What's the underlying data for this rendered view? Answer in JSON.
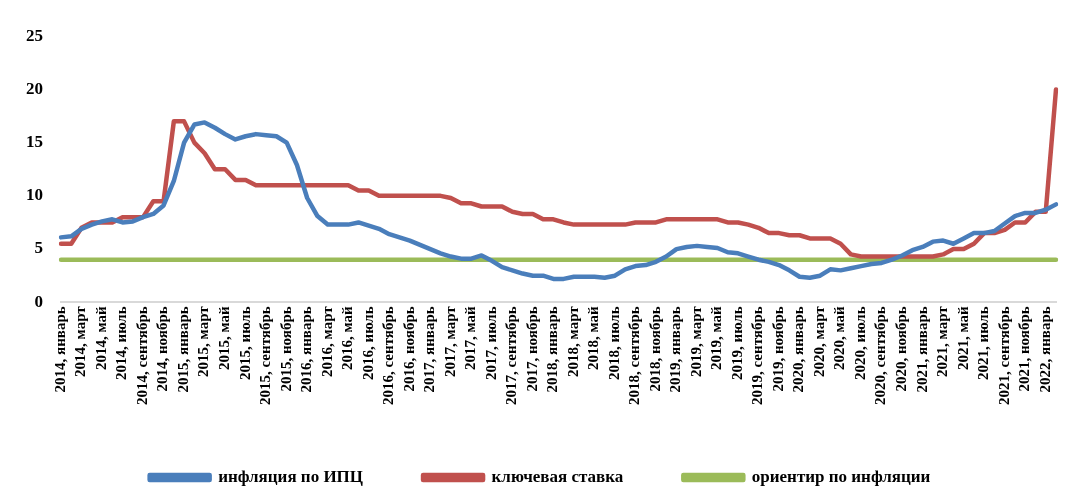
{
  "chart_data": {
    "type": "line",
    "categories": [
      "2014, январь",
      null,
      "2014, март",
      null,
      "2014, май",
      null,
      "2014, июль",
      null,
      "2014, сентябрь",
      null,
      "2014, ноябрь",
      null,
      "2015, январь",
      null,
      "2015, март",
      null,
      "2015, май",
      null,
      "2015, июль",
      null,
      "2015, сентябрь",
      null,
      "2015, ноябрь",
      null,
      "2016, январь",
      null,
      "2016, март",
      null,
      "2016, май",
      null,
      "2016, июль",
      null,
      "2016, сентябрь",
      null,
      "2016, ноябрь",
      null,
      "2017, январь",
      null,
      "2017, март",
      null,
      "2017, май",
      null,
      "2017, июль",
      null,
      "2017, сентябрь",
      null,
      "2017, ноябрь",
      null,
      "2018, январь",
      null,
      "2018, март",
      null,
      "2018, май",
      null,
      "2018, июль",
      null,
      "2018, сентябрь",
      null,
      "2018, ноябрь",
      null,
      "2019, январь",
      null,
      "2019, март",
      null,
      "2019, май",
      null,
      "2019, июль",
      null,
      "2019, сентябрь",
      null,
      "2019, ноябрь",
      null,
      "2020, январь",
      null,
      "2020, март",
      null,
      "2020, май",
      null,
      "2020, июль",
      null,
      "2020, сентябрь",
      null,
      "2020, ноябрь",
      null,
      "2021, январь",
      null,
      "2021, март",
      null,
      "2021, май",
      null,
      "2021, июль",
      null,
      "2021, сентябрь",
      null,
      "2021, ноябрь",
      null,
      "2022, январь",
      null
    ],
    "series": [
      {
        "name": "инфляция по ИПЦ",
        "color": "#4a7ebb",
        "values": [
          6.1,
          6.2,
          6.9,
          7.3,
          7.6,
          7.8,
          7.5,
          7.6,
          8.0,
          8.3,
          9.1,
          11.4,
          15.0,
          16.7,
          16.9,
          16.4,
          15.8,
          15.3,
          15.6,
          15.8,
          15.7,
          15.6,
          15.0,
          12.9,
          9.8,
          8.1,
          7.3,
          7.3,
          7.3,
          7.5,
          7.2,
          6.9,
          6.4,
          6.1,
          5.8,
          5.4,
          5.0,
          4.6,
          4.3,
          4.1,
          4.1,
          4.4,
          3.9,
          3.3,
          3.0,
          2.7,
          2.5,
          2.5,
          2.2,
          2.2,
          2.4,
          2.4,
          2.4,
          2.3,
          2.5,
          3.1,
          3.4,
          3.5,
          3.8,
          4.3,
          5.0,
          5.2,
          5.3,
          5.2,
          5.1,
          4.7,
          4.6,
          4.3,
          4.0,
          3.8,
          3.5,
          3.0,
          2.4,
          2.3,
          2.5,
          3.1,
          3.0,
          3.2,
          3.4,
          3.6,
          3.7,
          4.0,
          4.4,
          4.9,
          5.2,
          5.7,
          5.8,
          5.5,
          6.0,
          6.5,
          6.5,
          6.7,
          7.4,
          8.1,
          8.4,
          8.4,
          8.7,
          9.2
        ]
      },
      {
        "name": "ключевая ставка",
        "color": "#c0504d",
        "values": [
          5.5,
          5.5,
          7.0,
          7.5,
          7.5,
          7.5,
          8.0,
          8.0,
          8.0,
          9.5,
          9.5,
          17,
          17,
          15,
          14,
          12.5,
          12.5,
          11.5,
          11.5,
          11,
          11,
          11,
          11,
          11,
          11,
          11,
          11,
          11,
          11,
          10.5,
          10.5,
          10,
          10,
          10,
          10,
          10,
          10,
          10,
          9.8,
          9.3,
          9.3,
          9,
          9,
          9,
          8.5,
          8.3,
          8.3,
          7.8,
          7.8,
          7.5,
          7.3,
          7.3,
          7.3,
          7.3,
          7.3,
          7.3,
          7.5,
          7.5,
          7.5,
          7.8,
          7.8,
          7.8,
          7.8,
          7.8,
          7.8,
          7.5,
          7.5,
          7.3,
          7,
          6.5,
          6.5,
          6.3,
          6.3,
          6,
          6,
          6,
          5.5,
          4.5,
          4.3,
          4.3,
          4.3,
          4.3,
          4.3,
          4.3,
          4.3,
          4.3,
          4.5,
          5,
          5,
          5.5,
          6.5,
          6.5,
          6.8,
          7.5,
          7.5,
          8.5,
          8.5,
          20
        ]
      },
      {
        "name": "ориентир по инфляции",
        "color": "#9bbb59",
        "values": [
          4,
          4,
          4,
          4,
          4,
          4,
          4,
          4,
          4,
          4,
          4,
          4,
          4,
          4,
          4,
          4,
          4,
          4,
          4,
          4,
          4,
          4,
          4,
          4,
          4,
          4,
          4,
          4,
          4,
          4,
          4,
          4,
          4,
          4,
          4,
          4,
          4,
          4,
          4,
          4,
          4,
          4,
          4,
          4,
          4,
          4,
          4,
          4,
          4,
          4,
          4,
          4,
          4,
          4,
          4,
          4,
          4,
          4,
          4,
          4,
          4,
          4,
          4,
          4,
          4,
          4,
          4,
          4,
          4,
          4,
          4,
          4,
          4,
          4,
          4,
          4,
          4,
          4,
          4,
          4,
          4,
          4,
          4,
          4,
          4,
          4,
          4,
          4,
          4,
          4,
          4,
          4,
          4,
          4,
          4,
          4,
          4,
          4
        ]
      }
    ],
    "ylim": [
      0,
      25
    ],
    "yticks": [
      0,
      5,
      10,
      15,
      20,
      25
    ],
    "grid": false,
    "legend": "bottom",
    "marker": "none",
    "line_style": "solid"
  }
}
